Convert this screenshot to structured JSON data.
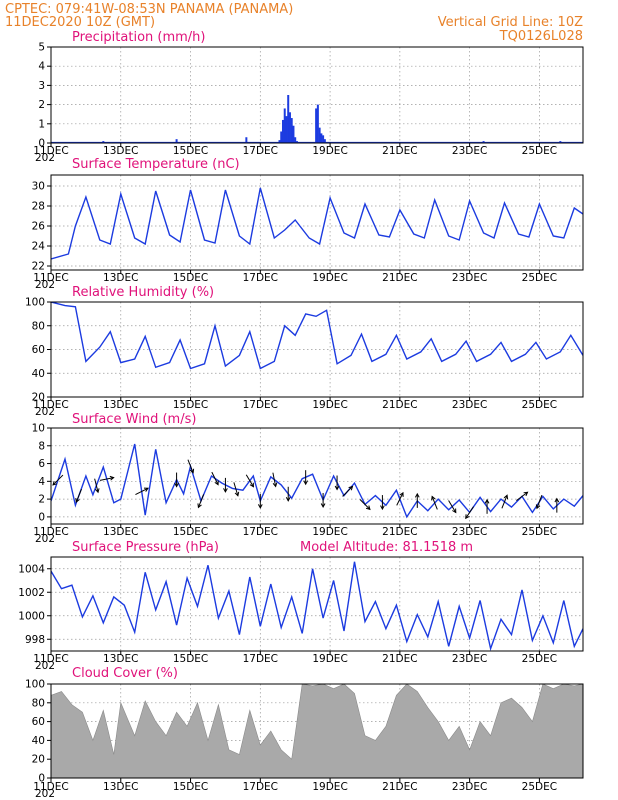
{
  "header": {
    "line1_left": "CPTEC:   079:41W-08:53N   PANAMA (PANAMA)",
    "line2_left": "11DEC2020 10Z (GMT)",
    "line1_right": "Vertical Grid Line: 10Z",
    "line2_right": "TQ0126L028"
  },
  "colors": {
    "header": "#e8822a",
    "title": "#e0127a",
    "series": "#1c3be0",
    "cloud": "#a9a9a9",
    "arrow": "#000000"
  },
  "x_axis": {
    "tick_labels": [
      "11DEC",
      "13DEC",
      "15DEC",
      "17DEC",
      "19DEC",
      "21DEC",
      "23DEC",
      "25DEC"
    ],
    "tick_days": [
      0,
      2,
      4,
      6,
      8,
      10,
      12,
      14
    ],
    "year_fragment": "202"
  },
  "chart_data": [
    {
      "id": "precip",
      "type": "bar",
      "title": "Precipitation (mm/h)",
      "unit": "mm/h",
      "xlabel": "",
      "ylabel": "",
      "ylim": [
        0,
        5
      ],
      "yticks": [
        0,
        1,
        2,
        3,
        4,
        5
      ],
      "grid": true,
      "x_unit": "days since 11DEC2020 10Z",
      "xlim": [
        0,
        15.25
      ],
      "x": [
        1.5,
        3.6,
        5.6,
        6.55,
        6.6,
        6.65,
        6.7,
        6.75,
        6.8,
        6.85,
        6.9,
        6.95,
        7.0,
        7.05,
        7.6,
        7.65,
        7.7,
        7.75,
        7.8,
        7.85,
        12.4,
        14.6
      ],
      "values": [
        0.1,
        0.2,
        0.3,
        0.15,
        0.6,
        1.2,
        1.8,
        1.4,
        2.5,
        1.6,
        1.3,
        0.9,
        0.3,
        0.1,
        1.8,
        2.0,
        0.8,
        0.5,
        0.4,
        0.2,
        0.1,
        0.1
      ]
    },
    {
      "id": "temp",
      "type": "line",
      "title": "Surface Temperature (nC)",
      "unit": "nC",
      "xlabel": "",
      "ylabel": "",
      "ylim": [
        21.6,
        31.1
      ],
      "yticks": [
        22,
        24,
        26,
        28,
        30
      ],
      "grid": true,
      "x_unit": "days since 11DEC2020 10Z",
      "xlim": [
        0,
        15.25
      ],
      "x": [
        0,
        0.5,
        0.7,
        1.0,
        1.4,
        1.7,
        2.0,
        2.4,
        2.7,
        3.0,
        3.4,
        3.7,
        4.0,
        4.4,
        4.7,
        5.0,
        5.4,
        5.7,
        6.0,
        6.4,
        6.7,
        7.0,
        7.4,
        7.7,
        8.0,
        8.4,
        8.7,
        9.0,
        9.4,
        9.7,
        10.0,
        10.4,
        10.7,
        11.0,
        11.4,
        11.7,
        12.0,
        12.4,
        12.7,
        13.0,
        13.4,
        13.7,
        14.0,
        14.4,
        14.7,
        15.0,
        15.25
      ],
      "series": [
        {
          "values": [
            22.7,
            23.2,
            26.0,
            28.9,
            24.6,
            24.2,
            29.2,
            24.8,
            24.2,
            29.5,
            25.1,
            24.4,
            29.6,
            24.6,
            24.3,
            29.6,
            25.0,
            24.2,
            29.8,
            24.8,
            25.6,
            26.6,
            24.8,
            24.2,
            28.8,
            25.3,
            24.8,
            28.2,
            25.1,
            24.9,
            27.6,
            25.2,
            24.8,
            28.6,
            25.0,
            24.6,
            28.5,
            25.3,
            24.8,
            28.3,
            25.2,
            24.9,
            28.2,
            25.0,
            24.8,
            27.8,
            27.2
          ]
        }
      ]
    },
    {
      "id": "rh",
      "type": "line",
      "title": "Relative Humidity (%)",
      "unit": "%",
      "xlabel": "",
      "ylabel": "",
      "ylim": [
        20,
        100
      ],
      "yticks": [
        20,
        40,
        60,
        80,
        100
      ],
      "grid": true,
      "x_unit": "days since 11DEC2020 10Z",
      "xlim": [
        0,
        15.25
      ],
      "x": [
        0,
        0.4,
        0.7,
        1.0,
        1.4,
        1.7,
        2.0,
        2.4,
        2.7,
        3.0,
        3.4,
        3.7,
        4.0,
        4.4,
        4.7,
        5.0,
        5.4,
        5.7,
        6.0,
        6.4,
        6.7,
        7.0,
        7.3,
        7.6,
        7.9,
        8.2,
        8.6,
        8.9,
        9.2,
        9.6,
        9.9,
        10.2,
        10.6,
        10.9,
        11.2,
        11.6,
        11.9,
        12.2,
        12.6,
        12.9,
        13.2,
        13.6,
        13.9,
        14.2,
        14.6,
        14.9,
        15.25
      ],
      "series": [
        {
          "values": [
            100,
            97,
            96,
            50,
            62,
            75,
            49,
            52,
            71,
            45,
            49,
            68,
            44,
            48,
            80,
            46,
            55,
            75,
            44,
            50,
            80,
            72,
            90,
            88,
            93,
            48,
            55,
            73,
            50,
            56,
            72,
            52,
            58,
            69,
            50,
            56,
            67,
            50,
            56,
            66,
            50,
            56,
            66,
            52,
            58,
            72,
            55
          ]
        }
      ]
    },
    {
      "id": "wind",
      "type": "line",
      "title": "Surface Wind (m/s)",
      "unit": "m/s",
      "xlabel": "",
      "ylabel": "",
      "ylim": [
        -0.8,
        10
      ],
      "yticks": [
        0,
        2,
        4,
        6,
        8,
        10
      ],
      "grid": true,
      "x_unit": "days since 11DEC2020 10Z",
      "xlim": [
        0,
        15.25
      ],
      "x": [
        0,
        0.4,
        0.7,
        1.0,
        1.2,
        1.5,
        1.8,
        2.0,
        2.4,
        2.7,
        3.0,
        3.3,
        3.6,
        3.8,
        4.0,
        4.3,
        4.6,
        4.9,
        5.2,
        5.5,
        5.8,
        6.0,
        6.3,
        6.6,
        6.9,
        7.2,
        7.5,
        7.8,
        8.1,
        8.4,
        8.7,
        9.0,
        9.3,
        9.6,
        9.9,
        10.2,
        10.5,
        10.8,
        11.1,
        11.4,
        11.7,
        12.0,
        12.3,
        12.6,
        12.9,
        13.2,
        13.5,
        13.8,
        14.1,
        14.4,
        14.7,
        15.0,
        15.25
      ],
      "series": [
        {
          "values": [
            1.8,
            6.5,
            1.3,
            4.6,
            2.5,
            5.6,
            1.6,
            2.0,
            8.2,
            0.2,
            7.6,
            1.6,
            4.2,
            2.6,
            5.7,
            1.8,
            4.6,
            3.8,
            3.2,
            3.0,
            4.6,
            1.8,
            4.5,
            3.6,
            2.1,
            4.3,
            4.8,
            1.9,
            4.6,
            2.4,
            3.8,
            1.4,
            2.4,
            1.3,
            3.0,
            0.0,
            1.8,
            0.7,
            2.0,
            0.8,
            1.9,
            0.5,
            2.2,
            0.6,
            2.0,
            1.1,
            2.3,
            0.5,
            2.3,
            0.9,
            2.0,
            1.2,
            2.4
          ]
        }
      ],
      "arrow_x": [
        0.2,
        0.8,
        1.3,
        1.6,
        2.6,
        3.6,
        4.0,
        4.3,
        4.7,
        5.0,
        5.3,
        5.7,
        6.0,
        6.4,
        6.8,
        7.3,
        7.8,
        8.2,
        8.5,
        9.0,
        9.5,
        10.0,
        10.5,
        11.0,
        11.5,
        12.0,
        12.5,
        13.0,
        13.5,
        14.0,
        14.5
      ],
      "arrow_u": [
        -1,
        -0.4,
        0.2,
        1,
        1,
        0,
        0.4,
        -0.4,
        0.5,
        0,
        0.3,
        0.6,
        0,
        0.2,
        0,
        0,
        0,
        0,
        0.6,
        0.6,
        0,
        0.5,
        0,
        -0.4,
        0.3,
        -0.4,
        0,
        0.4,
        0.8,
        -0.3,
        0
      ],
      "arrow_v": [
        -1,
        -1,
        -0.8,
        0.2,
        0.5,
        -1,
        -1,
        -1,
        -1,
        -1,
        -1,
        -1,
        -1,
        -1,
        -1,
        -1,
        -1,
        -1,
        0.6,
        -0.6,
        -1,
        1,
        1,
        1,
        -0.5,
        -0.6,
        1,
        1,
        0.6,
        -0.8,
        1
      ]
    },
    {
      "id": "pres",
      "type": "line",
      "title": "Surface Pressure (hPa)",
      "subtitle": "Model Altitude: 81.1518 m",
      "unit": "hPa",
      "xlabel": "",
      "ylabel": "",
      "ylim": [
        997,
        1005
      ],
      "yticks": [
        998,
        1000,
        1002,
        1004
      ],
      "grid": true,
      "x_unit": "days since 11DEC2020 10Z",
      "xlim": [
        0,
        15.25
      ],
      "x": [
        0,
        0.3,
        0.6,
        0.9,
        1.2,
        1.5,
        1.8,
        2.1,
        2.4,
        2.7,
        3.0,
        3.3,
        3.6,
        3.9,
        4.2,
        4.5,
        4.8,
        5.1,
        5.4,
        5.7,
        6.0,
        6.3,
        6.6,
        6.9,
        7.2,
        7.5,
        7.8,
        8.1,
        8.4,
        8.7,
        9.0,
        9.3,
        9.6,
        9.9,
        10.2,
        10.5,
        10.8,
        11.1,
        11.4,
        11.7,
        12.0,
        12.3,
        12.6,
        12.9,
        13.2,
        13.5,
        13.8,
        14.1,
        14.4,
        14.7,
        15.0,
        15.25
      ],
      "series": [
        {
          "values": [
            1003.8,
            1002.3,
            1002.6,
            999.9,
            1001.7,
            999.4,
            1001.6,
            1000.9,
            998.6,
            1003.7,
            1000.5,
            1002.9,
            999.2,
            1003.2,
            1000.8,
            1004.3,
            999.8,
            1002.1,
            998.4,
            1003.3,
            999.1,
            1002.7,
            999.0,
            1001.6,
            998.5,
            1004.0,
            999.8,
            1003.0,
            998.7,
            1004.6,
            999.5,
            1001.2,
            998.9,
            1000.9,
            997.8,
            1000.1,
            998.2,
            1001.2,
            997.4,
            1000.8,
            998.1,
            1001.3,
            997.2,
            999.7,
            998.4,
            1002.2,
            997.9,
            1000.0,
            997.7,
            1001.3,
            997.4,
            998.9
          ]
        }
      ]
    },
    {
      "id": "cloud",
      "type": "area",
      "title": "Cloud Cover (%)",
      "unit": "%",
      "xlabel": "",
      "ylabel": "",
      "ylim": [
        0,
        100
      ],
      "yticks": [
        0,
        20,
        40,
        60,
        80,
        100
      ],
      "grid": true,
      "x_unit": "days since 11DEC2020 10Z",
      "xlim": [
        0,
        15.25
      ],
      "x": [
        0,
        0.3,
        0.6,
        0.9,
        1.2,
        1.5,
        1.8,
        2.0,
        2.4,
        2.7,
        3.0,
        3.3,
        3.6,
        3.9,
        4.2,
        4.5,
        4.8,
        5.1,
        5.4,
        5.7,
        6.0,
        6.3,
        6.6,
        6.9,
        7.2,
        7.5,
        7.8,
        8.1,
        8.4,
        8.7,
        9.0,
        9.3,
        9.6,
        9.9,
        10.2,
        10.5,
        10.8,
        11.1,
        11.4,
        11.7,
        12.0,
        12.3,
        12.6,
        12.9,
        13.2,
        13.5,
        13.8,
        14.1,
        14.4,
        14.7,
        15.0,
        15.25
      ],
      "series": [
        {
          "values": [
            88,
            92,
            78,
            70,
            40,
            72,
            25,
            80,
            45,
            82,
            60,
            45,
            70,
            55,
            80,
            40,
            78,
            30,
            25,
            72,
            35,
            50,
            30,
            20,
            100,
            98,
            100,
            95,
            100,
            90,
            45,
            40,
            55,
            88,
            100,
            92,
            75,
            60,
            40,
            55,
            30,
            60,
            45,
            80,
            85,
            75,
            60,
            100,
            95,
            100,
            98,
            100
          ]
        }
      ]
    }
  ]
}
